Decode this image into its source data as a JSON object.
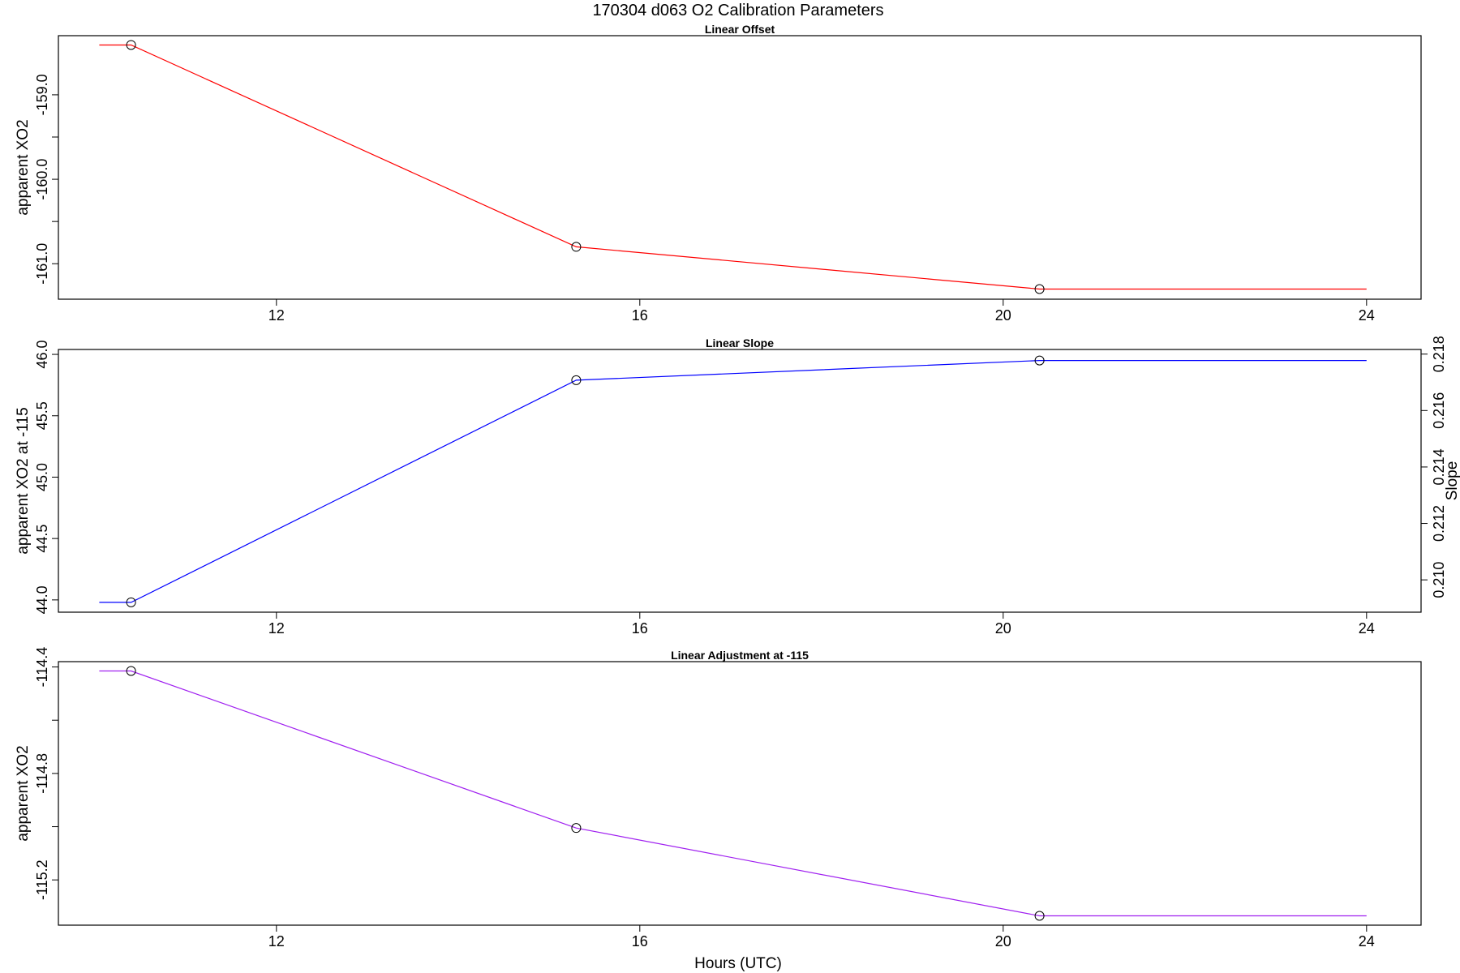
{
  "figure": {
    "title": "170304   d063   O2 Calibration Parameters",
    "xlabel": "Hours (UTC)"
  },
  "chart_data": [
    {
      "type": "line",
      "title": "Linear Offset",
      "xlabel": "",
      "ylabel": "apparent XO2",
      "xlim": [
        9.6,
        24.6
      ],
      "ylim": [
        -161.42,
        -158.3
      ],
      "x_ticks": [
        12,
        16,
        20,
        24
      ],
      "y_ticks": [
        -161.0,
        -160.5,
        -160.0,
        -159.5,
        -159.0
      ],
      "y_tick_labels": [
        "-161.0",
        "",
        "-160.0",
        "",
        "-159.0"
      ],
      "grid": false,
      "series": [
        {
          "color": "#ff0000",
          "points": [
            [
              10.05,
              -158.41
            ],
            [
              10.4,
              -158.41
            ],
            [
              15.3,
              -160.8
            ],
            [
              20.4,
              -161.3
            ],
            [
              24.0,
              -161.3
            ]
          ],
          "markers": [
            [
              10.4,
              -158.41
            ],
            [
              15.3,
              -160.8
            ],
            [
              20.4,
              -161.3
            ]
          ]
        }
      ]
    },
    {
      "type": "line",
      "title": "Linear Slope",
      "xlabel": "",
      "ylabel": "apparent XO2 at -115",
      "y2label": "Slope",
      "xlim": [
        9.6,
        24.6
      ],
      "ylim": [
        43.9,
        46.04
      ],
      "x_ticks": [
        12,
        16,
        20,
        24
      ],
      "y_ticks": [
        44.0,
        44.5,
        45.0,
        45.5,
        46.0
      ],
      "y_tick_labels": [
        "44.0",
        "44.5",
        "45.0",
        "45.5",
        "46.0"
      ],
      "y2_ticks": [
        0.21,
        0.212,
        0.214,
        0.216,
        0.218
      ],
      "y2_tick_labels": [
        "0.210",
        "0.212",
        "0.214",
        "0.216",
        "0.218"
      ],
      "y2_map": [
        [
          44.0,
          0.20929
        ],
        [
          46.0,
          0.21799
        ]
      ],
      "grid": false,
      "series": [
        {
          "color": "#0000ff",
          "points": [
            [
              10.05,
              43.98
            ],
            [
              10.4,
              43.98
            ],
            [
              15.3,
              45.79
            ],
            [
              20.4,
              45.95
            ],
            [
              24.0,
              45.95
            ]
          ],
          "markers": [
            [
              10.4,
              43.98
            ],
            [
              15.3,
              45.79
            ],
            [
              20.4,
              45.95
            ]
          ]
        }
      ]
    },
    {
      "type": "line",
      "title": "Linear Adjustment at -115",
      "xlabel": "",
      "ylabel": "apparent XO2",
      "xlim": [
        9.6,
        24.6
      ],
      "ylim": [
        -115.37,
        -114.38
      ],
      "x_ticks": [
        12,
        16,
        20,
        24
      ],
      "y_ticks": [
        -115.2,
        -115.0,
        -114.8,
        -114.6,
        -114.4
      ],
      "y_tick_labels": [
        "-115.2",
        "",
        "-114.8",
        "",
        "-114.4"
      ],
      "grid": false,
      "series": [
        {
          "color": "#a020f0",
          "points": [
            [
              10.05,
              -114.415
            ],
            [
              10.4,
              -114.415
            ],
            [
              15.3,
              -115.005
            ],
            [
              20.4,
              -115.335
            ],
            [
              24.0,
              -115.335
            ]
          ],
          "markers": [
            [
              10.4,
              -114.415
            ],
            [
              15.3,
              -115.005
            ],
            [
              20.4,
              -115.335
            ]
          ]
        }
      ]
    }
  ]
}
